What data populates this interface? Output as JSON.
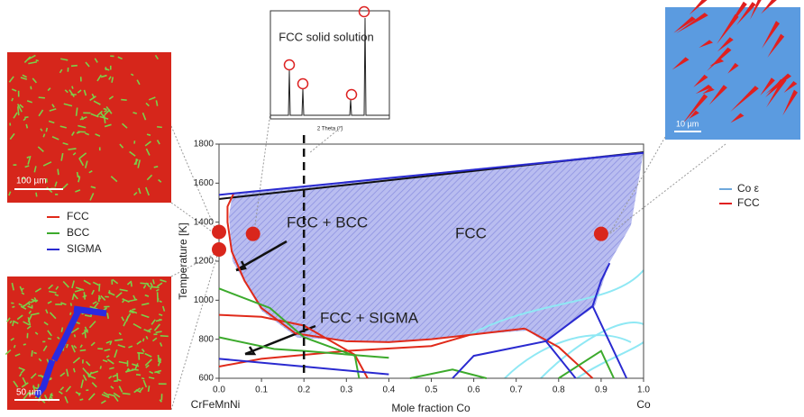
{
  "chart_data": {
    "type": "line",
    "x_label": "Mole fraction Co",
    "y_label": "Temperature [K]",
    "xlim": [
      0,
      1
    ],
    "ylim": [
      600,
      1800
    ],
    "xticks": [
      {
        "value": 0,
        "label": "0.0"
      },
      0.1,
      0.2,
      0.3,
      0.4,
      0.5,
      0.6,
      0.7,
      0.8,
      0.9,
      {
        "value": 1,
        "label": "1.0"
      }
    ],
    "yticks": [
      600,
      800,
      1000,
      1200,
      1400,
      1600,
      1800
    ],
    "end_labels": [
      "CrFeMnNi",
      "Co"
    ],
    "annotations": [
      "FCC + BCC",
      "FCC",
      "FCC + SIGMA"
    ],
    "reference_x": 0.2,
    "points": {
      "x": [
        0,
        0,
        0.08,
        0.9
      ],
      "y": [
        1350,
        1260,
        1340,
        1340
      ]
    },
    "series": [
      {
        "name": "FCC",
        "color": "#e02a1a",
        "x": [
          0.035,
          0.02,
          0.02,
          0.03,
          0.06,
          0.1,
          0.18,
          0.3,
          0.4,
          0.5,
          0.59,
          0.72,
          null,
          0,
          0.1,
          0.2,
          0.32,
          0.35,
          null,
          0,
          0.1,
          0.3,
          0.5,
          0.59,
          null,
          0.72,
          0.8,
          0.88
        ],
        "values": [
          1550,
          1480,
          1400,
          1250,
          1100,
          960,
          830,
          790,
          785,
          800,
          822,
          855,
          null,
          925,
          915,
          870,
          720,
          600,
          null,
          660,
          700,
          740,
          765,
          822,
          null,
          855,
          760,
          600
        ]
      },
      {
        "name": "BCC",
        "color": "#3caa2c",
        "x": [
          0,
          0.12,
          0.2,
          0.32,
          0.33,
          null,
          0,
          0.13,
          0.2,
          0.4,
          null,
          0.45,
          0.55,
          0.63,
          null,
          0.8,
          0.9,
          0.93
        ],
        "values": [
          1060,
          960,
          810,
          715,
          600,
          null,
          810,
          750,
          740,
          705,
          null,
          600,
          645,
          600,
          null,
          600,
          740,
          600
        ]
      },
      {
        "name": "SIGMA",
        "color": "#2a2ad0",
        "x": [
          0,
          1,
          null,
          0.92,
          0.9,
          0.88,
          0.77,
          0.6,
          0.55,
          null,
          0.77,
          0.84,
          null,
          0.88,
          0.96,
          null,
          0,
          0.2,
          0.35,
          0.4
        ],
        "values": [
          1540,
          1755,
          null,
          1190,
          1100,
          970,
          790,
          715,
          600,
          null,
          790,
          600,
          null,
          970,
          600,
          null,
          700,
          660,
          630,
          620
        ]
      }
    ]
  },
  "xrd": {
    "title": "FCC solid solution",
    "x_label": "2 Theta (°)"
  },
  "micrographs": {
    "scale_bars": [
      "100 µm",
      "50 µm",
      "10 µm"
    ],
    "legend": [
      {
        "name": "Co ε",
        "color": "#6fa8dc"
      },
      {
        "name": "FCC",
        "color": "#e02020"
      }
    ]
  }
}
